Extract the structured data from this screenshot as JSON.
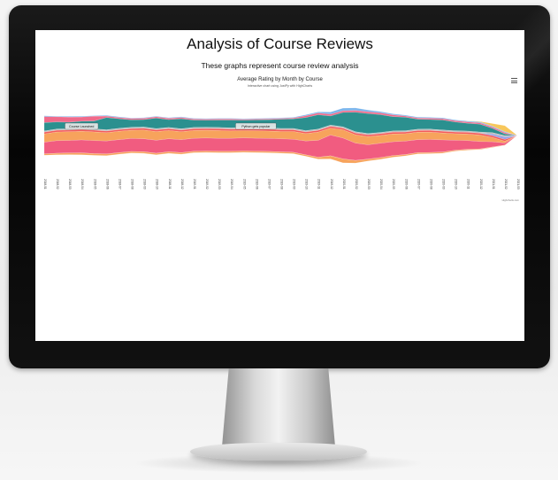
{
  "page": {
    "title": "Analysis of Course Reviews",
    "subtitle": "These graphs represent course review analysis"
  },
  "chart_menu_icon": "hamburger-menu-icon",
  "chart_data": {
    "type": "area",
    "subtype": "streamgraph",
    "title": "Average Rating by Month by Course",
    "subtitle": "Interactive chart using JustPy with HighCharts",
    "credits": "Highcharts.com",
    "x": [
      "2018-01",
      "2018-02",
      "2018-03",
      "2018-04",
      "2018-05",
      "2018-06",
      "2018-07",
      "2018-08",
      "2018-09",
      "2018-10",
      "2018-11",
      "2018-12",
      "2019-01",
      "2019-02",
      "2019-03",
      "2019-04",
      "2019-05",
      "2019-06",
      "2019-07",
      "2019-08",
      "2019-09",
      "2019-10",
      "2019-11",
      "2019-12",
      "2020-01",
      "2020-02",
      "2020-03",
      "2020-04",
      "2020-05",
      "2020-06",
      "2020-07",
      "2020-08",
      "2020-09",
      "2020-10",
      "2020-11",
      "2020-12",
      "2021-01",
      "2021-02",
      "2021-03"
    ],
    "series": [
      {
        "color": "#f8c75b",
        "values": [
          0,
          0,
          0,
          0,
          0,
          0,
          0,
          0,
          0,
          0,
          0,
          0,
          0,
          0,
          0,
          0,
          0,
          0,
          0,
          0,
          0,
          0,
          0,
          0,
          0,
          0,
          0,
          0,
          0,
          0,
          0,
          0,
          0,
          0,
          0.1,
          0.3,
          1.2,
          2.8,
          0
        ]
      },
      {
        "color": "#7cb5ec",
        "values": [
          0.4,
          0.3,
          0.3,
          0.3,
          0.3,
          0.3,
          0.3,
          0.3,
          0.3,
          0.3,
          0.3,
          0.3,
          0.3,
          0.3,
          0.3,
          0.3,
          0.3,
          0.3,
          0.3,
          0.3,
          0.3,
          0.5,
          0.5,
          1.0,
          1.2,
          1.2,
          0.8,
          0.6,
          0.5,
          0.4,
          0.4,
          0.4,
          0.4,
          0.4,
          0.4,
          0.4,
          0.4,
          0.4,
          0
        ]
      },
      {
        "color": "#f06a8a",
        "values": [
          2.8,
          2.4,
          2.4,
          2.0,
          2.2,
          0.7,
          0.6,
          0.6,
          0.6,
          0.6,
          0.6,
          0.6,
          0.5,
          0.5,
          0.5,
          0.5,
          0.4,
          0.4,
          0.4,
          0.4,
          0.4,
          0.8,
          0.8,
          0.8,
          0.8,
          0.8,
          0.8,
          0.8,
          0.8,
          0.6,
          0.6,
          0.6,
          0.6,
          0.6,
          0.6,
          0.6,
          0.6,
          0.6,
          0
        ]
      },
      {
        "color": "#2b908f",
        "values": [
          3.8,
          3.2,
          3.0,
          3.2,
          3.6,
          5.6,
          4.4,
          3.4,
          3.4,
          4.8,
          3.6,
          4.6,
          3.4,
          3.2,
          3.4,
          3.6,
          3.4,
          3.6,
          3.8,
          4.2,
          4.4,
          6.0,
          6.6,
          4.2,
          6.6,
          9.0,
          9.2,
          8.2,
          6.6,
          6.2,
          4.6,
          4.4,
          4.6,
          4.0,
          3.6,
          3.6,
          2.0,
          0.8,
          0
        ]
      },
      {
        "color": "#bdbdbd",
        "values": [
          0.6,
          0.6,
          0.6,
          0.6,
          0.6,
          0.6,
          0.6,
          0.6,
          0.6,
          0.6,
          0.6,
          0.6,
          0.6,
          0.6,
          0.6,
          0.6,
          0.6,
          0.6,
          0.6,
          0.6,
          0.6,
          0.6,
          0.6,
          0.6,
          0.6,
          0.6,
          0.6,
          0.6,
          0.6,
          0.6,
          0.6,
          0.6,
          0.6,
          0.6,
          0.6,
          0.6,
          0.6,
          0.6,
          0
        ]
      },
      {
        "color": "#9aa2e6",
        "values": [
          0,
          0,
          0,
          0,
          0,
          0,
          0,
          0,
          0,
          0,
          0,
          0,
          0,
          0,
          0,
          0,
          0,
          0,
          0,
          0,
          0,
          0,
          0,
          0,
          0,
          0,
          0,
          0,
          0,
          0,
          0,
          0,
          0,
          0,
          0,
          0,
          0.8,
          1.2,
          0
        ]
      },
      {
        "color": "#f45b5b",
        "values": [
          0.8,
          0.8,
          0.8,
          0.8,
          0.8,
          0.8,
          0.8,
          0.8,
          0.8,
          0.8,
          0.8,
          0.8,
          0.8,
          0.8,
          0.8,
          0.8,
          0.8,
          0.8,
          0.8,
          0.8,
          0.8,
          0.8,
          0.8,
          0.8,
          0.8,
          0.8,
          0.8,
          0.8,
          0.8,
          0.8,
          0.8,
          0.8,
          0.8,
          0.8,
          0.8,
          0.8,
          0.8,
          0.8,
          0
        ]
      },
      {
        "color": "#f7a35c",
        "values": [
          3.8,
          4.0,
          4.0,
          4.0,
          4.0,
          3.8,
          3.8,
          3.8,
          4.0,
          4.0,
          3.8,
          3.6,
          3.6,
          3.6,
          3.6,
          3.4,
          3.4,
          3.4,
          3.4,
          3.4,
          3.6,
          3.4,
          3.8,
          3.2,
          3.8,
          3.8,
          3.8,
          3.6,
          3.6,
          3.4,
          3.4,
          3.4,
          3.2,
          3.0,
          3.0,
          3.0,
          2.0,
          0.8,
          0
        ]
      },
      {
        "color": "#f15c80",
        "values": [
          5.4,
          5.8,
          5.8,
          6.0,
          6.0,
          6.0,
          6.0,
          6.0,
          6.0,
          6.0,
          6.0,
          6.0,
          6.0,
          6.0,
          6.0,
          6.0,
          6.0,
          6.0,
          6.0,
          6.0,
          6.0,
          6.4,
          7.8,
          9.6,
          9.6,
          8.0,
          6.6,
          6.6,
          6.4,
          6.2,
          6.0,
          6.0,
          5.6,
          4.6,
          4.0,
          3.4,
          2.4,
          1.0,
          0
        ]
      },
      {
        "color": "#e4d354",
        "values": [
          0,
          0,
          0,
          0,
          0,
          0,
          0,
          0,
          0,
          0,
          0,
          0,
          0,
          0,
          0,
          0,
          0,
          0,
          0,
          0,
          0,
          0,
          0,
          0,
          0,
          0,
          0,
          0,
          0,
          0,
          0,
          0,
          0,
          0,
          0,
          0,
          0,
          0,
          0
        ]
      },
      {
        "color": "#f7a35c",
        "values": [
          0.6,
          0.7,
          0.7,
          0.8,
          0.8,
          0.7,
          0.7,
          0.7,
          0.7,
          0.7,
          0.7,
          0.7,
          0.6,
          0.6,
          0.6,
          0.6,
          0.6,
          0.6,
          0.6,
          0.6,
          0.6,
          0.6,
          0.8,
          1.4,
          1.8,
          1.2,
          0.8,
          0.8,
          0.7,
          0.6,
          0.6,
          0.5,
          0.5,
          0.4,
          0.4,
          0.3,
          0.2,
          0.1,
          0
        ]
      }
    ],
    "annotations": [
      {
        "text": "Course Launched",
        "x": "2018-04"
      },
      {
        "text": "Python gets popular",
        "x": "2019-06"
      }
    ],
    "legend": "none"
  }
}
